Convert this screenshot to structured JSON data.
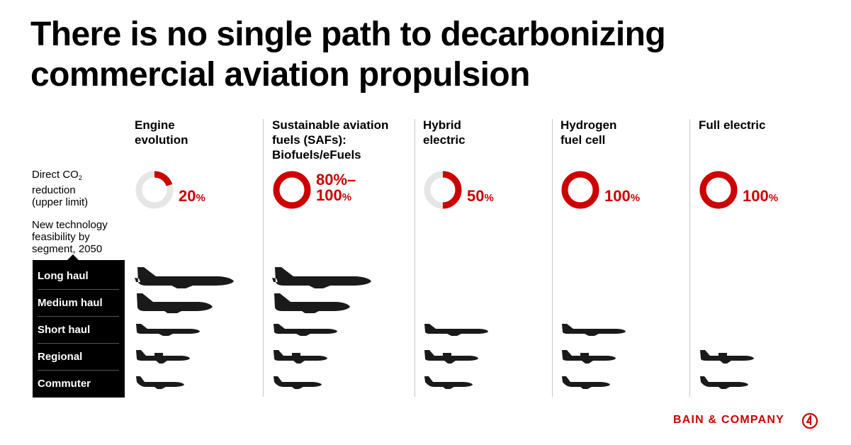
{
  "title_lines": [
    "There is no single path to decarbonizing",
    "commercial aviation propulsion"
  ],
  "row_labels": {
    "co2_line1": "Direct CO",
    "co2_sub": "2",
    "co2_line2": "reduction",
    "co2_line3": "(upper limit)",
    "feasibility_line1": "New technology",
    "feasibility_line2": "feasibility by",
    "feasibility_line3": "segment, 2050"
  },
  "colors": {
    "accent": "#cc0000",
    "track": "#e6e6e6",
    "plane": "#1a1a1a"
  },
  "chart_data": {
    "type": "table",
    "categories": [
      "Engine evolution",
      "Sustainable aviation fuels (SAFs): Biofuels/eFuels",
      "Hybrid electric",
      "Hydrogen fuel cell",
      "Full electric"
    ],
    "columns": [
      {
        "head": [
          "Engine",
          "evolution"
        ],
        "reduction": 20,
        "label_main": "20",
        "label_line2": "",
        "symbol": "%",
        "segments": [
          "Long haul",
          "Medium haul",
          "Short haul",
          "Regional",
          "Commuter"
        ]
      },
      {
        "head": [
          "Sustainable aviation",
          "fuels (SAFs):",
          "Biofuels/eFuels"
        ],
        "reduction": 100,
        "label_main": "80%–",
        "label_line2": "100",
        "symbol": "%",
        "segments": [
          "Long haul",
          "Medium haul",
          "Short haul",
          "Regional",
          "Commuter"
        ]
      },
      {
        "head": [
          "Hybrid",
          "electric"
        ],
        "reduction": 50,
        "label_main": "50",
        "label_line2": "",
        "symbol": "%",
        "segments": [
          "Short haul",
          "Regional",
          "Commuter"
        ]
      },
      {
        "head": [
          "Hydrogen",
          "fuel cell"
        ],
        "reduction": 100,
        "label_main": "100",
        "label_line2": "",
        "symbol": "%",
        "segments": [
          "Short haul",
          "Regional",
          "Commuter"
        ]
      },
      {
        "head": [
          "Full electric"
        ],
        "reduction": 100,
        "label_main": "100",
        "label_line2": "",
        "symbol": "%",
        "segments": [
          "Regional",
          "Commuter"
        ]
      }
    ],
    "segments": [
      "Long haul",
      "Medium haul",
      "Short haul",
      "Regional",
      "Commuter"
    ],
    "value_range": [
      0,
      100
    ]
  },
  "brand": {
    "name": "BAIN & COMPANY",
    "mark": "bain-logo-icon"
  }
}
